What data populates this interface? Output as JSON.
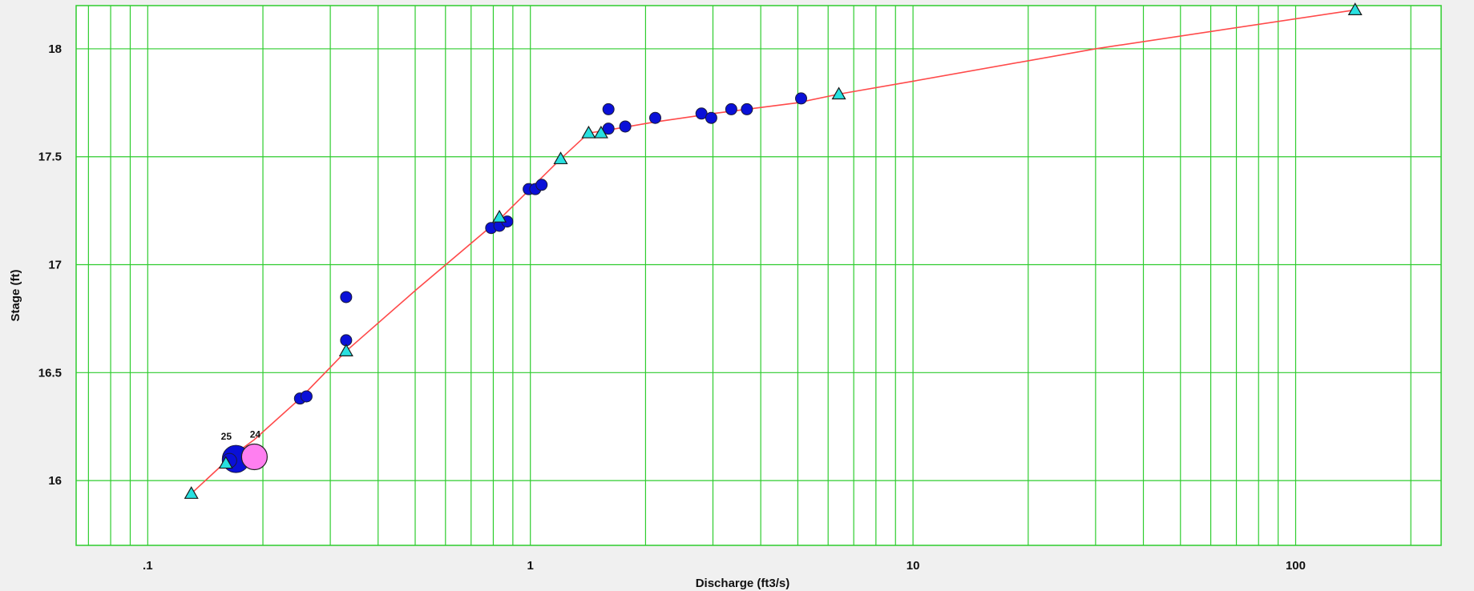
{
  "chart_data": {
    "type": "scatter",
    "xlabel": "Discharge (ft3/s)",
    "ylabel": "Stage (ft)",
    "x_scale": "log",
    "xlim": [
      0.065,
      240
    ],
    "ylim": [
      15.7,
      18.2
    ],
    "x_ticks": [
      {
        "value": 0.1,
        "label": ".1"
      },
      {
        "value": 1,
        "label": "1"
      },
      {
        "value": 10,
        "label": "10"
      },
      {
        "value": 100,
        "label": "100"
      }
    ],
    "y_ticks": [
      {
        "value": 16,
        "label": "16"
      },
      {
        "value": 16.5,
        "label": "16.5"
      },
      {
        "value": 17,
        "label": "17"
      },
      {
        "value": 17.5,
        "label": "17.5"
      },
      {
        "value": 18,
        "label": "18"
      }
    ],
    "grid": true,
    "colors": {
      "plot_background": "#ffffff",
      "grid": "#2ecc2e",
      "rating_curve": "#ff4a4a",
      "measurement_points": "#0a10d8",
      "rating_points": "#28e0e0",
      "highlight_point": "#ff7ff0"
    },
    "series": [
      {
        "kind": "line",
        "points": [
          [
            0.13,
            15.94
          ],
          [
            0.165,
            16.11
          ],
          [
            0.19,
            16.19
          ],
          [
            0.25,
            16.38
          ],
          [
            0.33,
            16.6
          ],
          [
            0.5,
            16.88
          ],
          [
            0.83,
            17.21
          ],
          [
            1.2,
            17.49
          ],
          [
            1.42,
            17.61
          ],
          [
            1.55,
            17.62
          ],
          [
            2.1,
            17.66
          ],
          [
            3.0,
            17.7
          ],
          [
            5.0,
            17.75
          ],
          [
            6.4,
            17.79
          ],
          [
            10,
            17.85
          ],
          [
            30,
            18.0
          ],
          [
            143,
            18.18
          ]
        ]
      },
      {
        "kind": "triangle",
        "points": [
          [
            0.13,
            15.94
          ],
          [
            0.16,
            16.08
          ],
          [
            0.33,
            16.6
          ],
          [
            0.83,
            17.22
          ],
          [
            1.2,
            17.49
          ],
          [
            1.42,
            17.61
          ],
          [
            1.53,
            17.61
          ],
          [
            6.4,
            17.79
          ],
          [
            143,
            18.18
          ]
        ]
      },
      {
        "kind": "circle",
        "points": [
          [
            0.25,
            16.38
          ],
          [
            0.26,
            16.39
          ],
          [
            0.33,
            16.65
          ],
          [
            0.33,
            16.85
          ],
          [
            0.79,
            17.17
          ],
          [
            0.83,
            17.18
          ],
          [
            0.87,
            17.2
          ],
          [
            0.99,
            17.35
          ],
          [
            1.03,
            17.35
          ],
          [
            1.07,
            17.37
          ],
          [
            1.6,
            17.72
          ],
          [
            1.6,
            17.63
          ],
          [
            1.77,
            17.64
          ],
          [
            2.12,
            17.68
          ],
          [
            2.8,
            17.7
          ],
          [
            2.97,
            17.68
          ],
          [
            3.35,
            17.72
          ],
          [
            3.68,
            17.72
          ],
          [
            5.1,
            17.77
          ]
        ]
      }
    ],
    "highlighted": [
      {
        "label": "25",
        "x": 0.17,
        "y": 16.1
      },
      {
        "label": "24",
        "x": 0.19,
        "y": 16.11
      }
    ]
  }
}
